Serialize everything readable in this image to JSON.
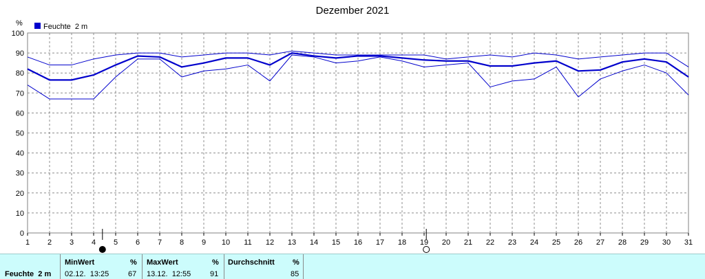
{
  "chart_data": {
    "type": "line",
    "title": "Dezember 2021",
    "ylabel": "%",
    "ylim": [
      0,
      100
    ],
    "yticks": [
      "0",
      "10",
      "20",
      "30",
      "40",
      "50",
      "60",
      "70",
      "80",
      "90",
      "100"
    ],
    "xticks": [
      "1",
      "2",
      "3",
      "4",
      "5",
      "6",
      "7",
      "8",
      "9",
      "10",
      "11",
      "12",
      "13",
      "14",
      "15",
      "16",
      "17",
      "18",
      "19",
      "20",
      "21",
      "22",
      "23",
      "24",
      "25",
      "26",
      "27",
      "28",
      "29",
      "30",
      "31"
    ],
    "x": [
      1,
      2,
      3,
      4,
      5,
      6,
      7,
      8,
      9,
      10,
      11,
      12,
      13,
      14,
      15,
      16,
      17,
      18,
      19,
      20,
      21,
      22,
      23,
      24,
      25,
      26,
      27,
      28,
      29,
      30,
      31
    ],
    "grid": true,
    "legend": "top-left",
    "legend_label": "Feuchte  2 m",
    "color": "#0000cc",
    "series": [
      {
        "role": "max",
        "values": [
          88,
          84,
          84,
          87,
          89,
          90,
          90,
          88,
          89,
          90,
          90,
          89,
          91,
          90,
          89,
          89,
          89,
          89,
          89,
          87,
          88,
          89,
          88,
          90,
          89,
          87,
          88,
          89,
          90,
          90,
          83
        ]
      },
      {
        "role": "avg",
        "values": [
          82,
          76.5,
          76.5,
          79,
          84,
          88.5,
          88,
          83,
          85,
          87.5,
          87.5,
          84,
          90,
          88.5,
          87.5,
          88.5,
          88.5,
          87.5,
          86.5,
          86,
          86,
          83.5,
          83.5,
          85,
          86,
          81,
          81.5,
          85.5,
          87,
          85.5,
          78
        ]
      },
      {
        "role": "min",
        "values": [
          74,
          67,
          67,
          67,
          78,
          87,
          87,
          78,
          81,
          82,
          84,
          76,
          89,
          88,
          85,
          86,
          88,
          86,
          83,
          84,
          85,
          73,
          76,
          77,
          83,
          68,
          77,
          81,
          84,
          80,
          69
        ]
      }
    ],
    "moon_phases": [
      {
        "day": 4.4,
        "phase": "new"
      },
      {
        "day": 19.1,
        "phase": "full"
      }
    ]
  },
  "stats": {
    "row_label": "Feuchte  2 m",
    "min_header": "MinWert",
    "min_unit": "%",
    "min_date": "02.12.  13:25",
    "min_value": "67",
    "max_header": "MaxWert",
    "max_unit": "%",
    "max_date": "13.12.  12:55",
    "max_value": "91",
    "avg_header": "Durchschnitt",
    "avg_unit": "%",
    "avg_value": "85"
  }
}
